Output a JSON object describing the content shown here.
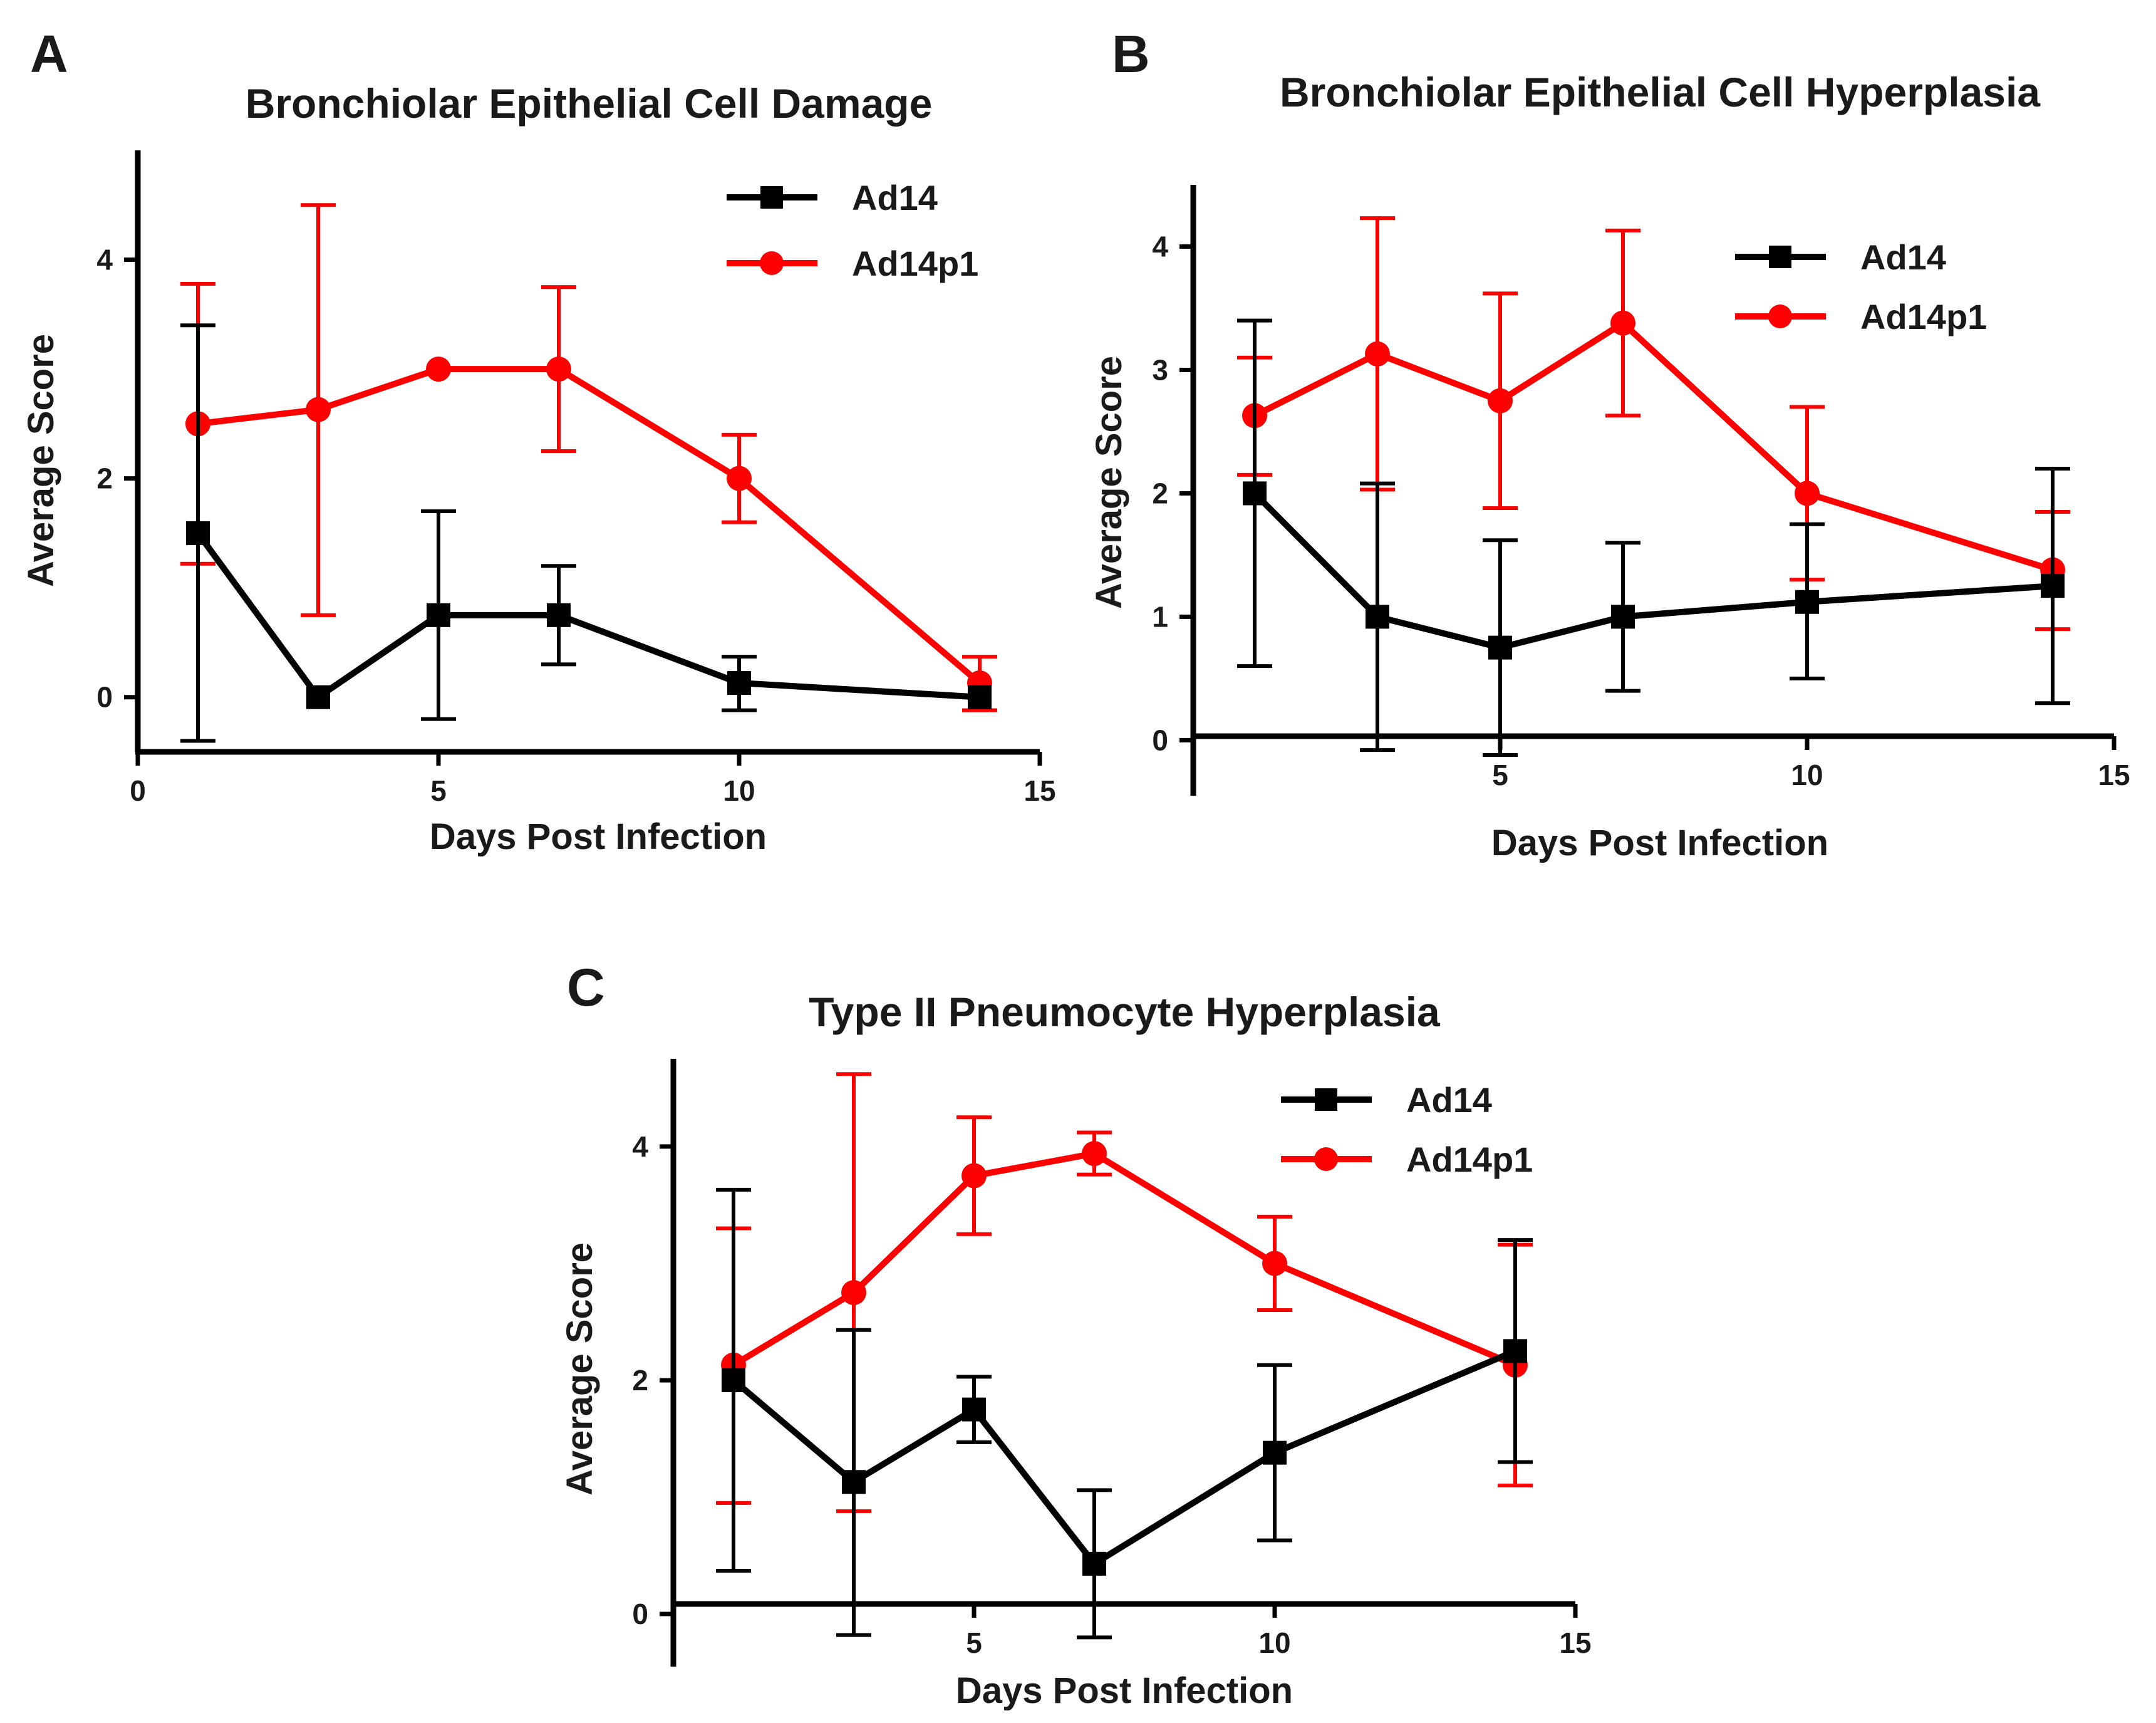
{
  "chart_data": [
    {
      "panel": "A",
      "type": "line",
      "title": "Bronchiolar Epithelial Cell Damage",
      "xlabel": "Days Post Infection",
      "ylabel": "Average Score",
      "xlim": [
        0,
        15
      ],
      "ylim": [
        -0.5,
        5
      ],
      "x_ticks": [
        0,
        5,
        10,
        15
      ],
      "y_ticks": [
        0,
        2,
        4
      ],
      "grid": false,
      "legend_position": "top-right",
      "series": [
        {
          "name": "Ad14",
          "color": "#000000",
          "marker": "square",
          "x": [
            1,
            3,
            5,
            7,
            10,
            14
          ],
          "y": [
            1.5,
            0,
            0.75,
            0.75,
            0.13,
            0
          ],
          "error_low": [
            -0.4,
            0,
            -0.2,
            0.3,
            -0.12,
            0
          ],
          "error_high": [
            3.4,
            0,
            1.7,
            1.2,
            0.37,
            0
          ]
        },
        {
          "name": "Ad14p1",
          "color": "#ff0000",
          "marker": "circle",
          "x": [
            1,
            3,
            5,
            7,
            10,
            14
          ],
          "y": [
            2.5,
            2.63,
            3.0,
            3.0,
            2.0,
            0.13
          ],
          "error_low": [
            1.22,
            0.75,
            3.0,
            2.25,
            1.6,
            -0.12
          ],
          "error_high": [
            3.78,
            4.5,
            3.0,
            3.75,
            2.4,
            0.37
          ]
        }
      ]
    },
    {
      "panel": "B",
      "type": "line",
      "title": "Bronchiolar Epithelial Cell Hyperplasia",
      "xlabel": "Days Post Infection",
      "ylabel": "Average Score",
      "xlim": [
        0,
        15
      ],
      "ylim": [
        -0.45,
        4.5
      ],
      "x_ticks": [
        5,
        10,
        15
      ],
      "y_ticks": [
        0,
        1,
        2,
        3,
        4
      ],
      "grid": false,
      "legend_position": "top-right",
      "series": [
        {
          "name": "Ad14",
          "color": "#000000",
          "marker": "square",
          "x": [
            1,
            3,
            5,
            7,
            10,
            14
          ],
          "y": [
            2.0,
            1.0,
            0.75,
            1.0,
            1.12,
            1.25
          ],
          "error_low": [
            0.6,
            -0.08,
            -0.12,
            0.4,
            0.5,
            0.3
          ],
          "error_high": [
            3.4,
            2.08,
            1.62,
            1.6,
            1.75,
            2.2
          ]
        },
        {
          "name": "Ad14p1",
          "color": "#ff0000",
          "marker": "circle",
          "x": [
            1,
            3,
            5,
            7,
            10,
            14
          ],
          "y": [
            2.63,
            3.13,
            2.75,
            3.38,
            2.0,
            1.38
          ],
          "error_low": [
            2.15,
            2.03,
            1.88,
            2.63,
            1.3,
            0.9
          ],
          "error_high": [
            3.1,
            4.23,
            3.62,
            4.13,
            2.7,
            1.85
          ]
        }
      ]
    },
    {
      "panel": "C",
      "type": "line",
      "title": "Type II Pneumocyte Hyperplasia",
      "xlabel": "Days Post Infection",
      "ylabel": "Average Score",
      "xlim": [
        0,
        15
      ],
      "ylim": [
        -0.45,
        4.75
      ],
      "x_ticks": [
        5,
        10,
        15
      ],
      "y_ticks": [
        0,
        2,
        4
      ],
      "grid": false,
      "legend_position": "top-right",
      "series": [
        {
          "name": "Ad14",
          "color": "#000000",
          "marker": "square",
          "x": [
            1,
            3,
            5,
            7,
            10,
            14
          ],
          "y": [
            2.0,
            1.13,
            1.75,
            0.43,
            1.38,
            2.25
          ],
          "error_low": [
            0.37,
            -0.18,
            1.47,
            -0.2,
            0.63,
            1.3
          ],
          "error_high": [
            3.63,
            2.43,
            2.03,
            1.06,
            2.13,
            3.2
          ]
        },
        {
          "name": "Ad14p1",
          "color": "#ff0000",
          "marker": "circle",
          "x": [
            1,
            3,
            5,
            7,
            10,
            14
          ],
          "y": [
            2.13,
            2.75,
            3.75,
            3.94,
            3.0,
            2.13
          ],
          "error_low": [
            0.95,
            0.88,
            3.25,
            3.76,
            2.6,
            1.1
          ],
          "error_high": [
            3.3,
            4.62,
            4.25,
            4.12,
            3.4,
            3.16
          ]
        }
      ]
    }
  ]
}
